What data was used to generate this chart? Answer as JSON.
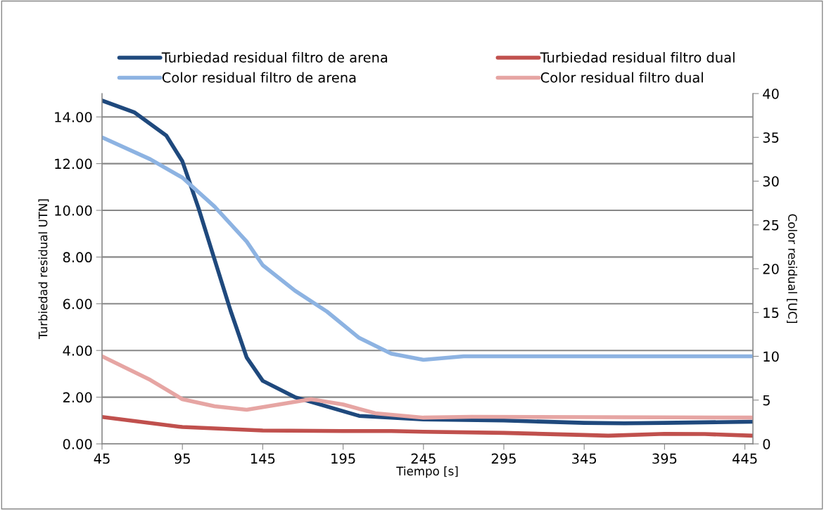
{
  "chart_data": {
    "type": "line",
    "xlabel": "Tiempo [s]",
    "ylabel": "Turbiedad residual UTN]",
    "y2label": "Color residual [UC]",
    "xlim": [
      45,
      450
    ],
    "xticks": [
      45,
      95,
      145,
      195,
      245,
      295,
      345,
      395,
      445
    ],
    "ylim": [
      0,
      15
    ],
    "yticks": [
      {
        "value": 0,
        "label": "0.00"
      },
      {
        "value": 2,
        "label": "2.00"
      },
      {
        "value": 4,
        "label": "4.00"
      },
      {
        "value": 6,
        "label": "6.00"
      },
      {
        "value": 8,
        "label": "8.00"
      },
      {
        "value": 10,
        "label": "10.00"
      },
      {
        "value": 12,
        "label": "12.00"
      },
      {
        "value": 14,
        "label": "14.00"
      }
    ],
    "y2lim": [
      0,
      40
    ],
    "y2ticks": [
      0,
      5,
      10,
      15,
      20,
      25,
      30,
      35,
      40
    ],
    "grid": "y",
    "legend": "top",
    "marker": "none",
    "line_style": "solid",
    "series": [
      {
        "name": "Turbiedad residual filtro de arena",
        "color": "#1f497d",
        "x": [
          45,
          65,
          85,
          95,
          105,
          115,
          125,
          135,
          145,
          165,
          185,
          205,
          245,
          295,
          345,
          370,
          395,
          450
        ],
        "values": [
          14.7,
          14.2,
          13.2,
          12.1,
          10.1,
          7.9,
          5.7,
          3.7,
          2.7,
          2.0,
          1.6,
          1.2,
          1.05,
          1.0,
          0.9,
          0.88,
          0.9,
          0.95
        ]
      },
      {
        "name": "Turbiedad residual filtro dual",
        "color": "#c0504d",
        "x": [
          45,
          95,
          145,
          195,
          225,
          245,
          295,
          345,
          360,
          395,
          420,
          450
        ],
        "values": [
          1.15,
          0.72,
          0.57,
          0.55,
          0.55,
          0.52,
          0.47,
          0.38,
          0.35,
          0.43,
          0.42,
          0.35
        ]
      },
      {
        "name": "Color residual filtro de arena",
        "color": "#8db3e2",
        "axis": "y2",
        "x": [
          45,
          75,
          95,
          115,
          135,
          145,
          165,
          185,
          205,
          225,
          245,
          270,
          450
        ],
        "values": [
          35.0,
          32.5,
          30.4,
          27.1,
          23.1,
          20.4,
          17.5,
          15.1,
          12.1,
          10.3,
          9.6,
          10,
          10
        ]
      },
      {
        "name": "Color residual filtro dual",
        "color": "#e6a5a3",
        "axis": "y2",
        "x": [
          45,
          75,
          95,
          115,
          135,
          155,
          175,
          195,
          215,
          245,
          275,
          450
        ],
        "values": [
          10,
          7.3,
          5.1,
          4.3,
          3.9,
          4.5,
          5.1,
          4.5,
          3.5,
          3.0,
          3.1,
          3.0
        ]
      }
    ]
  }
}
